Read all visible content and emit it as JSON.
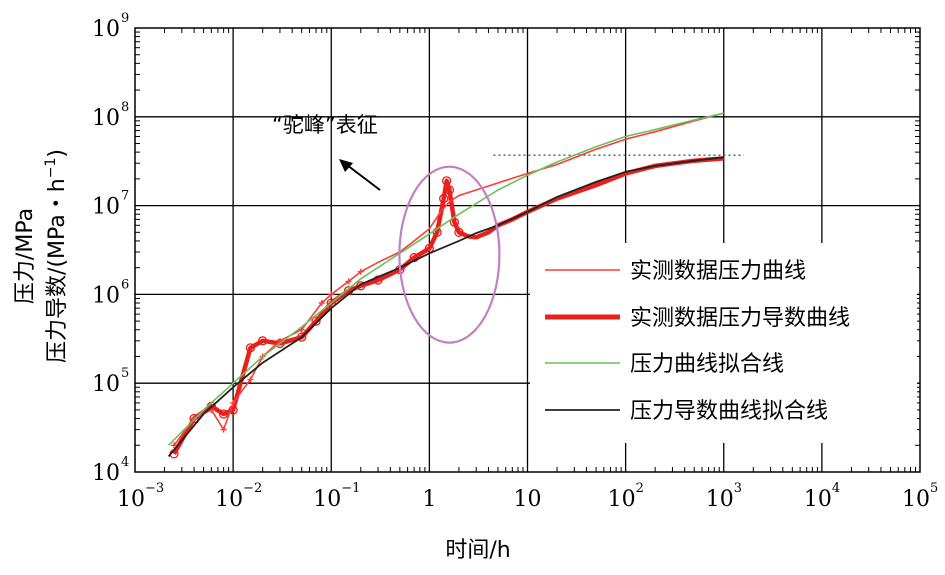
{
  "chart_data": {
    "type": "line",
    "xscale": "log",
    "yscale": "log",
    "xlim": [
      0.001,
      100000
    ],
    "ylim": [
      10000,
      1000000000
    ],
    "grid": true,
    "xlabel": "时间/h",
    "ylabel_line1": "压力/MPa",
    "ylabel_line2_prefix": "压力导数/(MPa・h",
    "ylabel_line2_sup": "−1",
    "ylabel_line2_suffix": ")",
    "x_ticks": [
      {
        "base": "10",
        "exp": "-3",
        "value": 0.001
      },
      {
        "base": "10",
        "exp": "-2",
        "value": 0.01
      },
      {
        "base": "10",
        "exp": "-1",
        "value": 0.1
      },
      {
        "base": "1",
        "exp": "",
        "value": 1
      },
      {
        "base": "10",
        "exp": "",
        "value": 10
      },
      {
        "base": "10",
        "exp": "2",
        "value": 100
      },
      {
        "base": "10",
        "exp": "3",
        "value": 1000
      },
      {
        "base": "10",
        "exp": "4",
        "value": 10000
      },
      {
        "base": "10",
        "exp": "5",
        "value": 100000
      }
    ],
    "y_ticks": [
      {
        "base": "10",
        "exp": "4",
        "value": 10000
      },
      {
        "base": "10",
        "exp": "5",
        "value": 100000
      },
      {
        "base": "10",
        "exp": "6",
        "value": 1000000
      },
      {
        "base": "10",
        "exp": "7",
        "value": 10000000
      },
      {
        "base": "10",
        "exp": "8",
        "value": 100000000
      },
      {
        "base": "10",
        "exp": "9",
        "value": 1000000000
      }
    ],
    "legend": {
      "position": "right",
      "entries": [
        {
          "label": "实测数据压力曲线",
          "color": "#ff3a3a",
          "width": 1.5
        },
        {
          "label": "实测数据压力导数曲线",
          "color": "#e8201c",
          "width": 5
        },
        {
          "label": "压力曲线拟合线",
          "color": "#6cbf5a",
          "width": 1.5
        },
        {
          "label": "压力导数曲线拟合线",
          "color": "#222222",
          "width": 1.8
        }
      ]
    },
    "annotation": {
      "text": "“驼峰”表征",
      "ellipse_center": [
        1.6,
        2800000
      ],
      "ellipse_color": "#c27fc4"
    },
    "reference_line": {
      "y": 37000000,
      "x_from": 4.5,
      "x_to": 1600
    },
    "series": [
      {
        "name": "实测数据压力曲线",
        "color": "#ff3a3a",
        "x": [
          0.0025,
          0.004,
          0.006,
          0.008,
          0.01,
          0.015,
          0.02,
          0.03,
          0.05,
          0.08,
          0.1,
          0.15,
          0.2,
          0.3,
          0.5,
          0.7,
          1.0,
          1.3,
          1.6,
          2.0,
          3.0,
          5.0,
          10,
          20,
          50,
          100,
          200,
          500,
          1000
        ],
        "y": [
          20000,
          40000,
          50000,
          30000,
          60000,
          110000,
          200000,
          300000,
          400000,
          800000,
          1000000,
          1400000,
          1800000,
          2300000,
          3000000,
          4000000,
          5500000,
          8500000,
          11000000,
          13000000,
          15000000,
          18000000,
          23000000,
          29000000,
          43000000,
          56000000,
          68000000,
          90000000,
          110000000
        ]
      },
      {
        "name": "实测数据压力导数曲线",
        "color": "#e8201c",
        "x": [
          0.0025,
          0.004,
          0.006,
          0.008,
          0.01,
          0.015,
          0.02,
          0.03,
          0.05,
          0.07,
          0.1,
          0.15,
          0.2,
          0.3,
          0.5,
          0.7,
          1.0,
          1.2,
          1.4,
          1.5,
          1.6,
          1.8,
          2.0,
          2.5,
          3.0,
          4.0,
          5.0,
          7.0,
          10,
          20,
          50,
          100,
          200,
          500,
          1000
        ],
        "y": [
          16000,
          40000,
          55000,
          45000,
          50000,
          250000,
          300000,
          280000,
          330000,
          500000,
          800000,
          1100000,
          1250000,
          1450000,
          1900000,
          2600000,
          3300000,
          5000000,
          12000000,
          19000000,
          15000000,
          6500000,
          5000000,
          4500000,
          4400000,
          5000000,
          6000000,
          7000000,
          8500000,
          12000000,
          17000000,
          23000000,
          28000000,
          32000000,
          34000000
        ]
      },
      {
        "name": "压力曲线拟合线",
        "color": "#6cbf5a",
        "x": [
          0.0022,
          0.005,
          0.01,
          0.02,
          0.05,
          0.1,
          0.2,
          0.5,
          1.0,
          2.0,
          5.0,
          10,
          20,
          50,
          100,
          200,
          500,
          1000
        ],
        "y": [
          20000,
          50000,
          100000,
          200000,
          430000,
          800000,
          1500000,
          2900000,
          4800000,
          8000000,
          15000000,
          22000000,
          31000000,
          46000000,
          60000000,
          72000000,
          92000000,
          110000000
        ]
      },
      {
        "name": "压力导数曲线拟合线",
        "color": "#222222",
        "x": [
          0.0022,
          0.005,
          0.01,
          0.02,
          0.05,
          0.1,
          0.2,
          0.5,
          1.0,
          2.0,
          3.0,
          5.0,
          10,
          20,
          50,
          100,
          200,
          500,
          1000
        ],
        "y": [
          15000,
          45000,
          90000,
          170000,
          330000,
          700000,
          1300000,
          2000000,
          2900000,
          4000000,
          4900000,
          6000000,
          8500000,
          12500000,
          18500000,
          24000000,
          28000000,
          32000000,
          35000000
        ]
      }
    ]
  }
}
